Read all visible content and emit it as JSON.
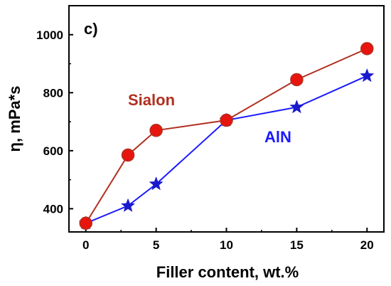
{
  "chart_data": {
    "type": "line",
    "panel_label": "c)",
    "xlabel": "Filler content, wt.%",
    "ylabel": "η, mPa*s",
    "xlim": [
      -1.2,
      21.2
    ],
    "ylim": [
      320,
      1100
    ],
    "xticks": [
      0,
      5,
      10,
      15,
      20
    ],
    "yticks": [
      400,
      600,
      800,
      1000
    ],
    "grid": false,
    "series": [
      {
        "name": "Sialon",
        "color": "#b03020",
        "marker": "circle",
        "marker_fill": "#e8140e",
        "x": [
          0,
          3,
          5,
          10,
          15,
          20
        ],
        "y": [
          350,
          585,
          670,
          705,
          845,
          952
        ]
      },
      {
        "name": "AlN",
        "color": "#1a1aff",
        "marker": "star",
        "marker_fill": "#1a1acc",
        "x": [
          0,
          3,
          5,
          10,
          15,
          20
        ],
        "y": [
          350,
          410,
          485,
          705,
          750,
          858
        ]
      }
    ]
  }
}
